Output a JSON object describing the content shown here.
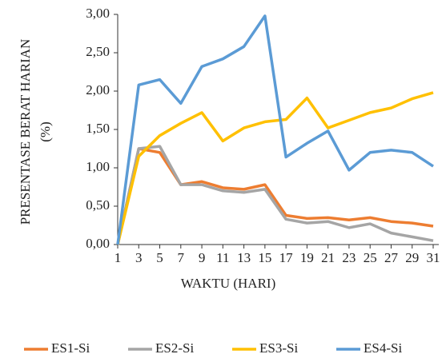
{
  "chart_data": {
    "type": "line",
    "x_label": "WAKTU (HARI)",
    "y_label": [
      "PRESENTASE BERAT HARIAN",
      "(%)"
    ],
    "categories": [
      "1",
      "3",
      "5",
      "7",
      "9",
      "11",
      "13",
      "15",
      "17",
      "19",
      "21",
      "23",
      "25",
      "27",
      "29",
      "31"
    ],
    "series": [
      {
        "name": "ES1-Si",
        "color": "#ed7d31",
        "values": [
          0,
          1.25,
          1.2,
          0.78,
          0.82,
          0.74,
          0.72,
          0.78,
          0.38,
          0.34,
          0.35,
          0.32,
          0.35,
          0.3,
          0.28,
          0.24
        ]
      },
      {
        "name": "ES2-Si",
        "color": "#a5a5a5",
        "values": [
          0,
          1.25,
          1.28,
          0.78,
          0.78,
          0.7,
          0.68,
          0.72,
          0.33,
          0.28,
          0.3,
          0.22,
          0.27,
          0.15,
          0.1,
          0.05
        ]
      },
      {
        "name": "ES3-Si",
        "color": "#ffc000",
        "values": [
          0,
          1.15,
          1.42,
          1.58,
          1.72,
          1.35,
          1.52,
          1.6,
          1.63,
          1.91,
          1.52,
          1.62,
          1.72,
          1.78,
          1.9,
          1.98
        ]
      },
      {
        "name": "ES4-Si",
        "color": "#5b9bd5",
        "values": [
          0,
          2.08,
          2.15,
          1.84,
          2.32,
          2.42,
          2.58,
          2.98,
          1.14,
          1.32,
          1.48,
          0.97,
          1.2,
          1.23,
          1.2,
          1.02
        ]
      }
    ],
    "ylim": [
      0,
      3
    ],
    "yticks": [
      {
        "value": 0,
        "label": "0,00"
      },
      {
        "value": 0.5,
        "label": "0,50"
      },
      {
        "value": 1,
        "label": "1,00"
      },
      {
        "value": 1.5,
        "label": "1,50"
      },
      {
        "value": 2,
        "label": "2,00"
      },
      {
        "value": 2.5,
        "label": "2,50"
      },
      {
        "value": 3,
        "label": "3,00"
      }
    ],
    "legend": "bottom"
  }
}
